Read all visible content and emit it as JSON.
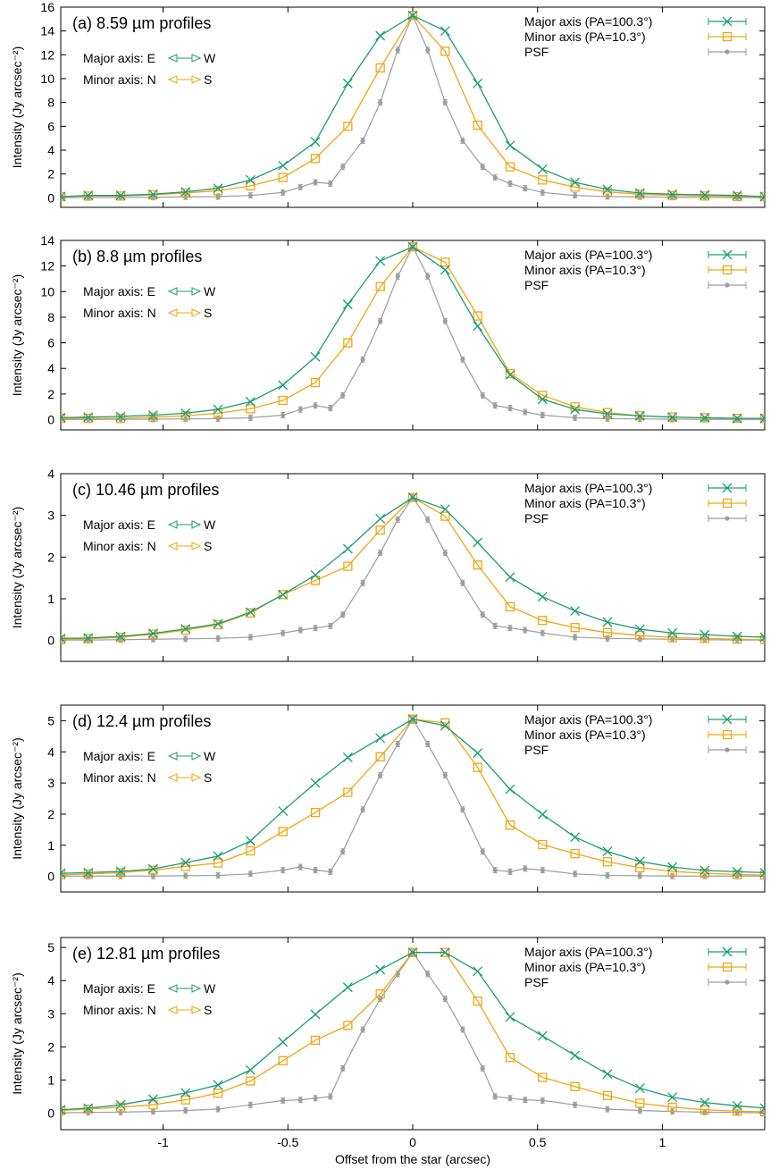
{
  "figure": {
    "xlabel": "Offset from the star (arcsec)",
    "xlim": [
      -1.41,
      1.41
    ],
    "xticks": [
      -1,
      -0.5,
      0,
      0.5,
      1
    ],
    "xtick_labels": [
      "-1",
      "-0.5",
      "0",
      "0.5",
      "1"
    ],
    "colors": {
      "major": "#1a9d78",
      "minor": "#f0a612",
      "psf": "#9d9d9d"
    }
  },
  "chart_data": [
    {
      "type": "line",
      "title": "(a) 8.59 µm profiles",
      "ylabel": "Intensity (Jy arcsec⁻²)",
      "ylim": [
        -0.8,
        16
      ],
      "yticks": [
        0,
        2,
        4,
        6,
        8,
        10,
        12,
        14,
        16
      ],
      "legend": "top-right",
      "orientation_notes": [
        "Major axis: E",
        "W",
        "Minor axis: N",
        "S"
      ],
      "series": [
        {
          "name": "Major axis (PA=100.3°)",
          "marker": "x",
          "x": [
            -1.41,
            -1.3,
            -1.17,
            -1.04,
            -0.91,
            -0.78,
            -0.65,
            -0.52,
            -0.39,
            -0.26,
            -0.13,
            0,
            0.13,
            0.26,
            0.39,
            0.52,
            0.65,
            0.78,
            0.91,
            1.04,
            1.17,
            1.3,
            1.41
          ],
          "y": [
            0.1,
            0.2,
            0.2,
            0.3,
            0.5,
            0.8,
            1.5,
            2.7,
            4.7,
            9.6,
            13.6,
            15.3,
            14.0,
            9.6,
            4.4,
            2.4,
            1.3,
            0.7,
            0.4,
            0.3,
            0.25,
            0.2,
            0.1
          ]
        },
        {
          "name": "Minor axis (PA=10.3°)",
          "marker": "square",
          "x": [
            -1.41,
            -1.3,
            -1.17,
            -1.04,
            -0.91,
            -0.78,
            -0.65,
            -0.52,
            -0.39,
            -0.26,
            -0.13,
            0,
            0.13,
            0.26,
            0.39,
            0.52,
            0.65,
            0.78,
            0.91,
            1.04,
            1.17,
            1.3,
            1.41
          ],
          "y": [
            0.1,
            0.15,
            0.15,
            0.25,
            0.4,
            0.6,
            1.0,
            1.7,
            3.3,
            6.0,
            10.9,
            15.3,
            12.3,
            6.1,
            2.6,
            1.5,
            0.9,
            0.5,
            0.3,
            0.2,
            0.15,
            0.1,
            0.1
          ]
        },
        {
          "name": "PSF",
          "marker": "dot",
          "x": [
            -1.41,
            -1.3,
            -1.17,
            -1.04,
            -0.91,
            -0.78,
            -0.65,
            -0.52,
            -0.45,
            -0.39,
            -0.33,
            -0.28,
            -0.2,
            -0.13,
            -0.06,
            0,
            0.06,
            0.13,
            0.2,
            0.28,
            0.33,
            0.39,
            0.45,
            0.52,
            0.65,
            0.78,
            0.91,
            1.04,
            1.17,
            1.3,
            1.41
          ],
          "y": [
            0.02,
            0.02,
            0.03,
            0.05,
            0.08,
            0.1,
            0.2,
            0.45,
            0.9,
            1.3,
            1.2,
            2.6,
            4.8,
            8.0,
            12.4,
            15.3,
            12.4,
            8.0,
            4.8,
            2.6,
            1.7,
            1.2,
            0.8,
            0.45,
            0.2,
            0.1,
            0.08,
            0.05,
            0.03,
            0.02,
            0.02
          ]
        }
      ]
    },
    {
      "type": "line",
      "title": "(b) 8.8 µm profiles",
      "ylabel": "Intensity (Jy arcsec⁻²)",
      "ylim": [
        -0.8,
        14
      ],
      "yticks": [
        0,
        2,
        4,
        6,
        8,
        10,
        12,
        14
      ],
      "legend": "top-right",
      "orientation_notes": [
        "Major axis: E",
        "W",
        "Minor axis: N",
        "S"
      ],
      "series": [
        {
          "name": "Major axis (PA=100.3°)",
          "marker": "x",
          "x": [
            -1.41,
            -1.3,
            -1.17,
            -1.04,
            -0.91,
            -0.78,
            -0.65,
            -0.52,
            -0.39,
            -0.26,
            -0.13,
            0,
            0.13,
            0.26,
            0.39,
            0.52,
            0.65,
            0.78,
            0.91,
            1.04,
            1.17,
            1.3,
            1.41
          ],
          "y": [
            0.15,
            0.2,
            0.25,
            0.35,
            0.5,
            0.8,
            1.4,
            2.7,
            4.9,
            9.0,
            12.4,
            13.5,
            11.7,
            7.3,
            3.5,
            1.6,
            0.8,
            0.45,
            0.3,
            0.2,
            0.15,
            0.1,
            0.1
          ]
        },
        {
          "name": "Minor axis (PA=10.3°)",
          "marker": "square",
          "x": [
            -1.41,
            -1.3,
            -1.17,
            -1.04,
            -0.91,
            -0.78,
            -0.65,
            -0.52,
            -0.39,
            -0.26,
            -0.13,
            0,
            0.13,
            0.26,
            0.39,
            0.52,
            0.65,
            0.78,
            0.91,
            1.04,
            1.17,
            1.3,
            1.41
          ],
          "y": [
            0.1,
            0.1,
            0.1,
            0.2,
            0.3,
            0.5,
            0.85,
            1.5,
            2.9,
            6.0,
            10.4,
            13.5,
            12.3,
            8.1,
            3.6,
            1.9,
            1.0,
            0.55,
            0.3,
            0.2,
            0.15,
            0.1,
            0.1
          ]
        },
        {
          "name": "PSF",
          "marker": "dot",
          "x": [
            -1.41,
            -1.3,
            -1.17,
            -1.04,
            -0.91,
            -0.78,
            -0.65,
            -0.52,
            -0.45,
            -0.39,
            -0.33,
            -0.28,
            -0.2,
            -0.13,
            -0.06,
            0,
            0.06,
            0.13,
            0.2,
            0.28,
            0.33,
            0.39,
            0.45,
            0.52,
            0.65,
            0.78,
            0.91,
            1.04,
            1.17,
            1.3,
            1.41
          ],
          "y": [
            0.02,
            0.02,
            0.03,
            0.04,
            0.06,
            0.08,
            0.15,
            0.35,
            0.8,
            1.1,
            0.9,
            1.9,
            4.7,
            7.7,
            11.2,
            13.5,
            11.2,
            7.7,
            4.7,
            1.9,
            1.1,
            0.9,
            0.6,
            0.35,
            0.15,
            0.08,
            0.06,
            0.04,
            0.03,
            0.02,
            0.02
          ]
        }
      ]
    },
    {
      "type": "line",
      "title": "(c) 10.46 µm profiles",
      "ylabel": "Intensity (Jy arcsec⁻²)",
      "ylim": [
        -0.5,
        4
      ],
      "yticks": [
        0,
        1,
        2,
        3,
        4
      ],
      "legend": "top-right",
      "orientation_notes": [
        "Major axis: E",
        "W",
        "Minor axis: N",
        "S"
      ],
      "series": [
        {
          "name": "Major axis (PA=100.3°)",
          "marker": "x",
          "x": [
            -1.41,
            -1.3,
            -1.17,
            -1.04,
            -0.91,
            -0.78,
            -0.65,
            -0.52,
            -0.39,
            -0.26,
            -0.13,
            0,
            0.13,
            0.26,
            0.39,
            0.52,
            0.65,
            0.78,
            0.91,
            1.04,
            1.17,
            1.3,
            1.41
          ],
          "y": [
            0.05,
            0.06,
            0.1,
            0.17,
            0.28,
            0.4,
            0.68,
            1.1,
            1.57,
            2.2,
            2.92,
            3.43,
            3.15,
            2.35,
            1.52,
            1.05,
            0.71,
            0.44,
            0.27,
            0.18,
            0.14,
            0.1,
            0.08
          ]
        },
        {
          "name": "Minor axis (PA=10.3°)",
          "marker": "square",
          "x": [
            -1.41,
            -1.3,
            -1.17,
            -1.04,
            -0.91,
            -0.78,
            -0.65,
            -0.52,
            -0.39,
            -0.26,
            -0.13,
            0,
            0.13,
            0.26,
            0.39,
            0.52,
            0.65,
            0.78,
            0.91,
            1.04,
            1.17,
            1.3,
            1.41
          ],
          "y": [
            0.02,
            0.04,
            0.08,
            0.15,
            0.25,
            0.38,
            0.66,
            1.1,
            1.44,
            1.78,
            2.65,
            3.43,
            2.98,
            1.81,
            0.81,
            0.48,
            0.31,
            0.19,
            0.12,
            0.07,
            0.05,
            0.03,
            0.02
          ]
        },
        {
          "name": "PSF",
          "marker": "dot",
          "x": [
            -1.41,
            -1.3,
            -1.17,
            -1.04,
            -0.91,
            -0.78,
            -0.65,
            -0.52,
            -0.45,
            -0.39,
            -0.33,
            -0.28,
            -0.2,
            -0.13,
            -0.06,
            0,
            0.06,
            0.13,
            0.2,
            0.28,
            0.33,
            0.39,
            0.45,
            0.52,
            0.65,
            0.78,
            0.91,
            1.04,
            1.17,
            1.3,
            1.41
          ],
          "y": [
            0.01,
            0.01,
            0.02,
            0.03,
            0.04,
            0.05,
            0.08,
            0.18,
            0.25,
            0.3,
            0.35,
            0.62,
            1.38,
            2.1,
            2.9,
            3.43,
            2.9,
            2.1,
            1.38,
            0.62,
            0.35,
            0.3,
            0.25,
            0.18,
            0.08,
            0.05,
            0.04,
            0.03,
            0.02,
            0.01,
            0.01
          ]
        }
      ]
    },
    {
      "type": "line",
      "title": "(d) 12.4 µm profiles",
      "ylabel": "Intensity (Jy arcsec⁻²)",
      "ylim": [
        -0.5,
        5.5
      ],
      "yticks": [
        0,
        1,
        2,
        3,
        4,
        5
      ],
      "legend": "top-right",
      "orientation_notes": [
        "Major axis: E",
        "W",
        "Minor axis: N",
        "S"
      ],
      "series": [
        {
          "name": "Major axis (PA=100.3°)",
          "marker": "x",
          "x": [
            -1.41,
            -1.3,
            -1.17,
            -1.04,
            -0.91,
            -0.78,
            -0.65,
            -0.52,
            -0.39,
            -0.26,
            -0.13,
            0,
            0.13,
            0.26,
            0.39,
            0.52,
            0.65,
            0.78,
            0.91,
            1.04,
            1.17,
            1.3,
            1.41
          ],
          "y": [
            0.1,
            0.12,
            0.16,
            0.24,
            0.44,
            0.65,
            1.14,
            2.1,
            3.0,
            3.82,
            4.44,
            5.05,
            4.84,
            3.96,
            2.8,
            1.99,
            1.26,
            0.8,
            0.48,
            0.3,
            0.19,
            0.15,
            0.12
          ]
        },
        {
          "name": "Minor axis (PA=10.3°)",
          "marker": "square",
          "x": [
            -1.41,
            -1.3,
            -1.17,
            -1.04,
            -0.91,
            -0.78,
            -0.65,
            -0.52,
            -0.39,
            -0.26,
            -0.13,
            0,
            0.13,
            0.26,
            0.39,
            0.52,
            0.65,
            0.78,
            0.91,
            1.04,
            1.17,
            1.3,
            1.41
          ],
          "y": [
            0.05,
            0.08,
            0.12,
            0.2,
            0.32,
            0.43,
            0.82,
            1.44,
            2.05,
            2.7,
            3.84,
            5.05,
            4.93,
            3.5,
            1.65,
            1.02,
            0.73,
            0.47,
            0.28,
            0.16,
            0.1,
            0.06,
            0.04
          ]
        },
        {
          "name": "PSF",
          "marker": "dot",
          "x": [
            -1.41,
            -1.3,
            -1.17,
            -1.04,
            -0.91,
            -0.78,
            -0.65,
            -0.52,
            -0.45,
            -0.39,
            -0.33,
            -0.28,
            -0.2,
            -0.13,
            -0.06,
            0,
            0.06,
            0.13,
            0.2,
            0.28,
            0.33,
            0.39,
            0.45,
            0.52,
            0.65,
            0.78,
            0.91,
            1.04,
            1.17,
            1.3,
            1.41
          ],
          "y": [
            0.01,
            0.01,
            0.01,
            0.01,
            0.02,
            0.03,
            0.08,
            0.2,
            0.3,
            0.2,
            0.15,
            0.8,
            2.15,
            3.25,
            4.25,
            5.05,
            4.25,
            3.25,
            2.15,
            0.8,
            0.2,
            0.15,
            0.25,
            0.2,
            0.08,
            0.03,
            0.02,
            0.01,
            0.01,
            0.01,
            0.01
          ]
        }
      ]
    },
    {
      "type": "line",
      "title": "(e) 12.81 µm profiles",
      "ylabel": "Intensity (Jy arcsec⁻²)",
      "ylim": [
        -0.5,
        5.3
      ],
      "yticks": [
        0,
        1,
        2,
        3,
        4,
        5
      ],
      "legend": "top-right",
      "orientation_notes": [
        "Major axis: E",
        "W",
        "Minor axis: N",
        "S"
      ],
      "series": [
        {
          "name": "Major axis (PA=100.3°)",
          "marker": "x",
          "x": [
            -1.41,
            -1.3,
            -1.17,
            -1.04,
            -0.91,
            -0.78,
            -0.65,
            -0.52,
            -0.39,
            -0.26,
            -0.13,
            0,
            0.13,
            0.26,
            0.39,
            0.52,
            0.65,
            0.78,
            0.91,
            1.04,
            1.17,
            1.3,
            1.41
          ],
          "y": [
            0.1,
            0.15,
            0.25,
            0.42,
            0.61,
            0.85,
            1.3,
            2.15,
            2.98,
            3.8,
            4.33,
            4.85,
            4.85,
            4.28,
            2.9,
            2.33,
            1.74,
            1.18,
            0.75,
            0.48,
            0.32,
            0.22,
            0.15
          ]
        },
        {
          "name": "Minor axis (PA=10.3°)",
          "marker": "square",
          "x": [
            -1.41,
            -1.3,
            -1.17,
            -1.04,
            -0.91,
            -0.78,
            -0.65,
            -0.52,
            -0.39,
            -0.26,
            -0.13,
            0,
            0.13,
            0.26,
            0.39,
            0.52,
            0.65,
            0.78,
            0.91,
            1.04,
            1.17,
            1.3,
            1.41
          ],
          "y": [
            0.08,
            0.12,
            0.18,
            0.25,
            0.4,
            0.6,
            0.97,
            1.58,
            2.2,
            2.65,
            3.6,
            4.85,
            4.85,
            3.38,
            1.68,
            1.08,
            0.8,
            0.53,
            0.3,
            0.18,
            0.1,
            0.06,
            0.04
          ]
        },
        {
          "name": "PSF",
          "marker": "dot",
          "x": [
            -1.41,
            -1.3,
            -1.17,
            -1.04,
            -0.91,
            -0.78,
            -0.65,
            -0.52,
            -0.45,
            -0.39,
            -0.33,
            -0.28,
            -0.2,
            -0.13,
            -0.06,
            0,
            0.06,
            0.13,
            0.2,
            0.28,
            0.33,
            0.39,
            0.45,
            0.52,
            0.65,
            0.78,
            0.91,
            1.04,
            1.17,
            1.3,
            1.41
          ],
          "y": [
            0.01,
            0.02,
            0.03,
            0.05,
            0.08,
            0.12,
            0.25,
            0.38,
            0.4,
            0.45,
            0.5,
            1.35,
            2.52,
            3.45,
            4.2,
            4.85,
            4.2,
            3.45,
            2.52,
            1.35,
            0.5,
            0.45,
            0.4,
            0.38,
            0.25,
            0.12,
            0.08,
            0.05,
            0.03,
            0.02,
            0.01
          ]
        }
      ]
    }
  ]
}
